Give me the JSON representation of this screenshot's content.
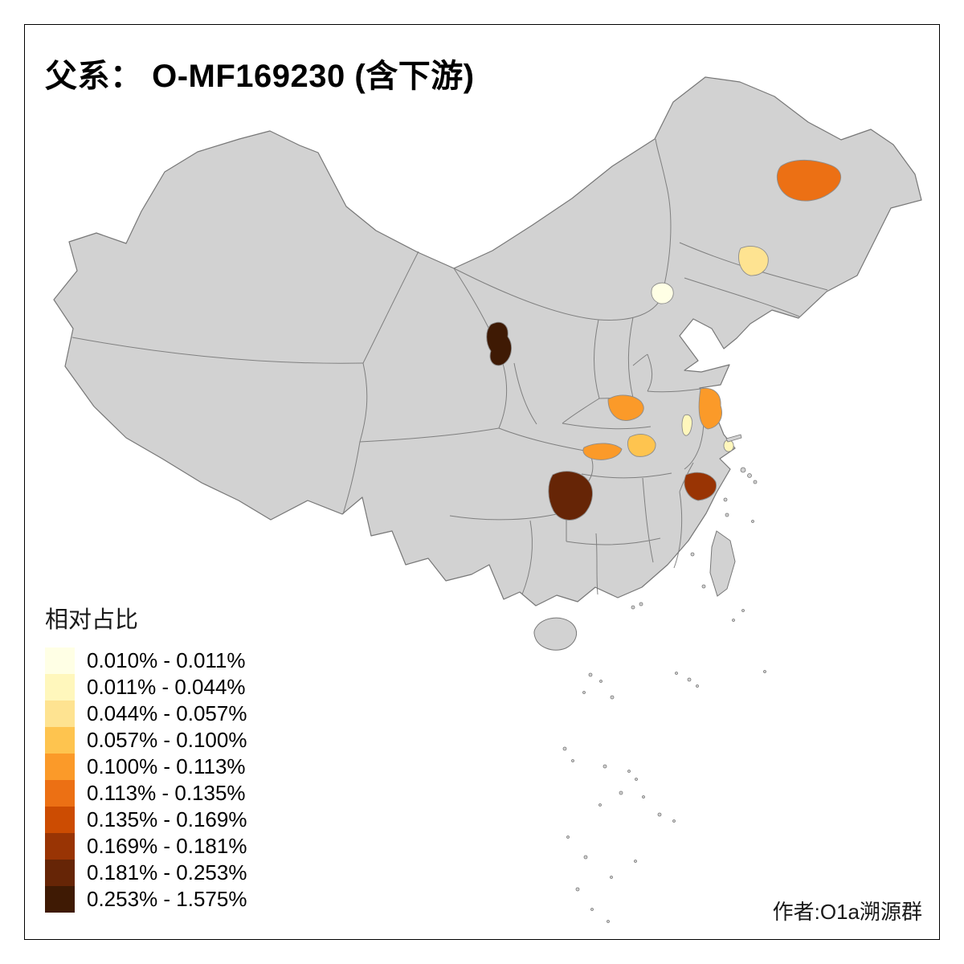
{
  "title": "父系： O-MF169230 (含下游)",
  "credit": "作者:O1a溯源群",
  "legend": {
    "title": "相对占比",
    "items": [
      {
        "label": "0.010% - 0.011%",
        "color": "#FFFFE5"
      },
      {
        "label": "0.011% - 0.044%",
        "color": "#FFF7BC"
      },
      {
        "label": "0.044% - 0.057%",
        "color": "#FEE391"
      },
      {
        "label": "0.057% - 0.100%",
        "color": "#FEC44F"
      },
      {
        "label": "0.100% - 0.113%",
        "color": "#FB9A29"
      },
      {
        "label": "0.113% - 0.135%",
        "color": "#EC7014"
      },
      {
        "label": "0.135% - 0.169%",
        "color": "#CC4C02"
      },
      {
        "label": "0.169% - 0.181%",
        "color": "#993404"
      },
      {
        "label": "0.181% - 0.253%",
        "color": "#662506"
      },
      {
        "label": "0.253% - 1.575%",
        "color": "#3F1A04"
      }
    ]
  },
  "map": {
    "base_fill": "#D2D2D2",
    "border_color": "#777777",
    "region_border_color": "#8C8C8C",
    "regions": [
      {
        "id": "heilongjiang",
        "bin": 6
      },
      {
        "id": "jilin-west",
        "bin": 3
      },
      {
        "id": "beijing",
        "bin": 1
      },
      {
        "id": "gansu-south",
        "bin": 10
      },
      {
        "id": "henan-south",
        "bin": 5
      },
      {
        "id": "jiangsu",
        "bin": 5
      },
      {
        "id": "anhui",
        "bin": 2
      },
      {
        "id": "hubei",
        "bin": 4
      },
      {
        "id": "chongqing",
        "bin": 5
      },
      {
        "id": "guizhou",
        "bin": 9
      },
      {
        "id": "zhejiang-north",
        "bin": 8
      },
      {
        "id": "shanghai",
        "bin": 2
      }
    ]
  }
}
